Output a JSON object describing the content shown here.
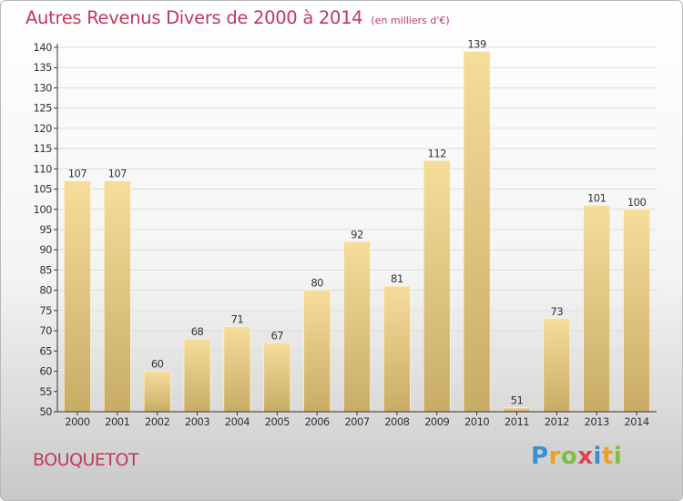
{
  "title": "Autres Revenus Divers de 2000 à 2014",
  "unit_note": "(en milliers d'€)",
  "commune": "BOUQUETOT",
  "brand": {
    "letters": [
      "P",
      "r",
      "o",
      "x",
      "i",
      "t",
      "i"
    ],
    "colors": [
      "#3a8fd1",
      "#f0a020",
      "#7bbf3a",
      "#e0454f",
      "#3a8fd1",
      "#f0a020",
      "#7bbf3a"
    ]
  },
  "colors": {
    "title": "#c0395a",
    "bar_top": "#f6dd9a",
    "bar_bottom": "#c8ac66",
    "axis": "#333333",
    "grid": "#dcdcdc"
  },
  "chart_data": {
    "type": "bar",
    "categories": [
      "2000",
      "2001",
      "2002",
      "2003",
      "2004",
      "2005",
      "2006",
      "2007",
      "2008",
      "2009",
      "2010",
      "2011",
      "2012",
      "2013",
      "2014"
    ],
    "values": [
      107,
      107,
      60,
      68,
      71,
      67,
      80,
      92,
      81,
      112,
      139,
      51,
      73,
      101,
      100
    ],
    "data_labels": [
      "107",
      "107",
      "60",
      "68",
      "71",
      "67",
      "80",
      "92",
      "81",
      "112",
      "139",
      "51",
      "73",
      "101",
      "100"
    ],
    "ylim": [
      50,
      140
    ],
    "yticks": [
      "50",
      "55",
      "60",
      "65",
      "70",
      "75",
      "80",
      "85",
      "90",
      "95",
      "100",
      "105",
      "110",
      "115",
      "120",
      "125",
      "130",
      "135",
      "140"
    ],
    "grid": true
  }
}
